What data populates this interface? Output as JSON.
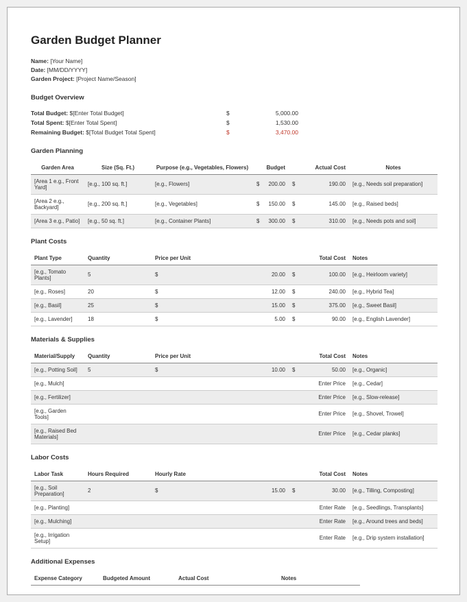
{
  "title": "Garden Budget Planner",
  "meta": {
    "name_label": "Name:",
    "name_value": "[Your Name]",
    "date_label": "Date:",
    "date_value": "[MM/DD/YYYY]",
    "project_label": "Garden Project:",
    "project_value": "[Project Name/Season]"
  },
  "overview": {
    "title": "Budget Overview",
    "rows": [
      {
        "label": "Total Budget:",
        "text": "$[Enter Total Budget]",
        "currency": "$",
        "value": "5,000.00",
        "accent": false
      },
      {
        "label": "Total Spent:",
        "text": "$[Enter Total Spent]",
        "currency": "$",
        "value": "1,530.00",
        "accent": false
      },
      {
        "label": "Remaining Budget:",
        "text": "$[Total Budget   Total Spent]",
        "currency": "$",
        "value": "3,470.00",
        "accent": true
      }
    ]
  },
  "garden_planning": {
    "title": "Garden Planning",
    "columns": [
      "Garden Area",
      "Size (Sq. Ft.)",
      "Purpose (e.g., Vegetables, Flowers)",
      "Budget",
      "Actual Cost",
      "Notes"
    ],
    "rows": [
      {
        "shade": true,
        "area": "[Area 1   e.g., Front Yard]",
        "size": "[e.g., 100 sq. ft.]",
        "purpose": "[e.g., Flowers]",
        "budget_cur": "$",
        "budget": "200.00",
        "actual_cur": "$",
        "actual": "190.00",
        "notes": "[e.g., Needs soil preparation]"
      },
      {
        "shade": false,
        "area": "[Area 2   e.g., Backyard]",
        "size": "[e.g., 200 sq. ft.]",
        "purpose": "[e.g., Vegetables]",
        "budget_cur": "$",
        "budget": "150.00",
        "actual_cur": "$",
        "actual": "145.00",
        "notes": "[e.g., Raised beds]"
      },
      {
        "shade": true,
        "area": "[Area 3   e.g., Patio]",
        "size": "[e.g., 50 sq. ft.]",
        "purpose": "[e.g., Container Plants]",
        "budget_cur": "$",
        "budget": "300.00",
        "actual_cur": "$",
        "actual": "310.00",
        "notes": "[e.g., Needs pots and soil]"
      }
    ]
  },
  "plant_costs": {
    "title": "Plant Costs",
    "columns": [
      "Plant Type",
      "Quantity",
      "Price per Unit",
      "",
      "Total Cost",
      "Notes"
    ],
    "rows": [
      {
        "shade": true,
        "type": "[e.g., Tomato Plants]",
        "qty": "5",
        "price_cur": "$",
        "price": "20.00",
        "total_cur": "$",
        "total": "100.00",
        "notes": "[e.g., Heirloom variety]"
      },
      {
        "shade": false,
        "type": "[e.g., Roses]",
        "qty": "20",
        "price_cur": "$",
        "price": "12.00",
        "total_cur": "$",
        "total": "240.00",
        "notes": "[e.g., Hybrid Tea]"
      },
      {
        "shade": true,
        "type": "[e.g., Basil]",
        "qty": "25",
        "price_cur": "$",
        "price": "15.00",
        "total_cur": "$",
        "total": "375.00",
        "notes": "[e.g., Sweet Basil]"
      },
      {
        "shade": false,
        "type": "[e.g., Lavender]",
        "qty": "18",
        "price_cur": "$",
        "price": "5.00",
        "total_cur": "$",
        "total": "90.00",
        "notes": "[e.g., English Lavender]"
      }
    ]
  },
  "materials": {
    "title": "Materials & Supplies",
    "columns": [
      "Material/Supply",
      "Quantity",
      "Price per Unit",
      "",
      "Total Cost",
      "Notes"
    ],
    "rows": [
      {
        "shade": true,
        "item": "[e.g., Potting Soil]",
        "qty": "5",
        "price_cur": "$",
        "price": "10.00",
        "total_cur": "$",
        "total": "50.00",
        "notes": "[e.g., Organic]"
      },
      {
        "shade": false,
        "item": "[e.g., Mulch]",
        "qty": "",
        "price_cur": "",
        "price": "",
        "total_cur": "",
        "total": "Enter Price",
        "notes": "[e.g., Cedar]"
      },
      {
        "shade": true,
        "item": "[e.g., Fertilizer]",
        "qty": "",
        "price_cur": "",
        "price": "",
        "total_cur": "",
        "total": "Enter Price",
        "notes": "[e.g., Slow-release]"
      },
      {
        "shade": false,
        "item": "[e.g., Garden Tools]",
        "qty": "",
        "price_cur": "",
        "price": "",
        "total_cur": "",
        "total": "Enter Price",
        "notes": "[e.g., Shovel, Trowel]"
      },
      {
        "shade": true,
        "item": "[e.g., Raised Bed Materials]",
        "qty": "",
        "price_cur": "",
        "price": "",
        "total_cur": "",
        "total": "Enter Price",
        "notes": "[e.g., Cedar planks]"
      }
    ]
  },
  "labor": {
    "title": "Labor Costs",
    "columns": [
      "Labor Task",
      "Hours Required",
      "Hourly Rate",
      "",
      "Total Cost",
      "Notes"
    ],
    "rows": [
      {
        "shade": true,
        "task": "[e.g., Soil Preparation]",
        "hours": "2",
        "rate_cur": "$",
        "rate": "15.00",
        "total_cur": "$",
        "total": "30.00",
        "notes": "[e.g., Tilling, Composting]"
      },
      {
        "shade": false,
        "task": "[e.g., Planting]",
        "hours": "",
        "rate_cur": "",
        "rate": "",
        "total_cur": "",
        "total": "Enter Rate",
        "notes": "[e.g., Seedlings, Transplants]"
      },
      {
        "shade": true,
        "task": "[e.g., Mulching]",
        "hours": "",
        "rate_cur": "",
        "rate": "",
        "total_cur": "",
        "total": "Enter Rate",
        "notes": "[e.g., Around trees and beds]"
      },
      {
        "shade": false,
        "task": "[e.g., Irrigation Setup]",
        "hours": "",
        "rate_cur": "",
        "rate": "",
        "total_cur": "",
        "total": "Enter Rate",
        "notes": "[e.g., Drip system installation]"
      }
    ]
  },
  "additional": {
    "title": "Additional Expenses",
    "columns": [
      "Expense Category",
      "Budgeted Amount",
      "Actual Cost",
      "Notes"
    ]
  },
  "colors": {
    "accent": "#c0392b",
    "shade_bg": "#ededed",
    "border": "#cccccc",
    "header_border": "#888888",
    "text": "#333333"
  }
}
